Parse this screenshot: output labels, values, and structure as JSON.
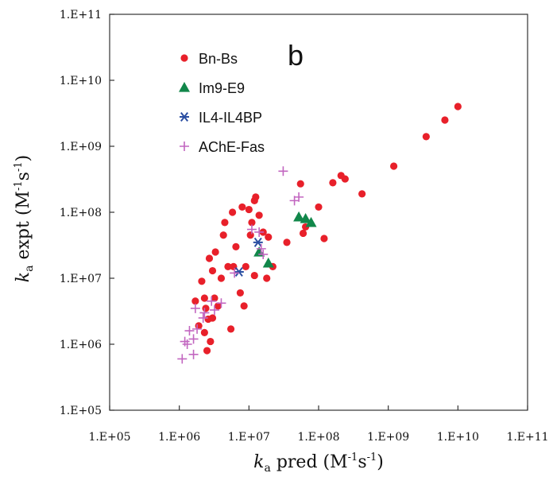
{
  "chart_data": {
    "type": "scatter",
    "panel_label": "b",
    "x_scale": "log",
    "y_scale": "log",
    "xlim": [
      100000,
      100000000000
    ],
    "ylim": [
      100000,
      100000000000
    ],
    "x_tick_values": [
      100000,
      1000000,
      10000000,
      100000000,
      1000000000,
      10000000000,
      100000000000
    ],
    "y_tick_values": [
      100000,
      1000000,
      10000000,
      100000000,
      1000000000,
      10000000000,
      100000000000
    ],
    "x_tick_labels": [
      "1.E+05",
      "1.E+06",
      "1.E+07",
      "1.E+08",
      "1.E+09",
      "1.E+10",
      "1.E+11"
    ],
    "y_tick_labels": [
      "1.E+05",
      "1.E+06",
      "1.E+07",
      "1.E+08",
      "1.E+09",
      "1.E+10",
      "1.E+11"
    ],
    "xlabel": {
      "k": "k",
      "sub": "a",
      "text": " pred (M",
      "sup1": "-1",
      "mid": "s",
      "sup2": "-1",
      "end": ")"
    },
    "ylabel": {
      "k": "k",
      "sub": "a",
      "text": " expt (M",
      "sup1": "-1",
      "mid": "s",
      "sup2": "-1",
      "end": ")"
    },
    "grid": false,
    "legend_position": "top-left",
    "series": [
      {
        "name": "Bn-Bs",
        "marker": "circle",
        "color": "#e8202a",
        "points": [
          [
            1700000,
            4500000
          ],
          [
            1900000,
            1900000
          ],
          [
            2100000,
            9000000
          ],
          [
            2300000,
            1500000
          ],
          [
            2300000,
            5000000
          ],
          [
            2400000,
            3500000
          ],
          [
            2500000,
            800000
          ],
          [
            2600000,
            2400000
          ],
          [
            2700000,
            20000000
          ],
          [
            2800000,
            1100000
          ],
          [
            3000000,
            13000000
          ],
          [
            3000000,
            2500000
          ],
          [
            3200000,
            5000000
          ],
          [
            3300000,
            25000000
          ],
          [
            3600000,
            3800000
          ],
          [
            4000000,
            10000000
          ],
          [
            4300000,
            45000000
          ],
          [
            4500000,
            70000000
          ],
          [
            5000000,
            15000000
          ],
          [
            5500000,
            1700000
          ],
          [
            5800000,
            100000000
          ],
          [
            6000000,
            15000000
          ],
          [
            6500000,
            30000000
          ],
          [
            7500000,
            6000000
          ],
          [
            8000000,
            120000000
          ],
          [
            8500000,
            3800000
          ],
          [
            9000000,
            15000000
          ],
          [
            10000000,
            110000000
          ],
          [
            10500000,
            45000000
          ],
          [
            11000000,
            70000000
          ],
          [
            12000000,
            150000000
          ],
          [
            12000000,
            11000000
          ],
          [
            12500000,
            170000000
          ],
          [
            14000000,
            90000000
          ],
          [
            16000000,
            50000000
          ],
          [
            18000000,
            10000000
          ],
          [
            19000000,
            42000000
          ],
          [
            22000000,
            15000000
          ],
          [
            35000000,
            35000000
          ],
          [
            55000000,
            270000000
          ],
          [
            60000000,
            48000000
          ],
          [
            65000000,
            60000000
          ],
          [
            100000000,
            120000000
          ],
          [
            120000000,
            40000000
          ],
          [
            160000000,
            280000000
          ],
          [
            210000000,
            360000000
          ],
          [
            240000000,
            320000000
          ],
          [
            420000000,
            190000000
          ],
          [
            1200000000,
            500000000
          ],
          [
            3500000000,
            1400000000
          ],
          [
            6500000000,
            2500000000
          ],
          [
            10000000000,
            4000000000
          ]
        ]
      },
      {
        "name": "Im9-E9",
        "marker": "triangle",
        "color": "#11874a",
        "points": [
          [
            14000000,
            25000000
          ],
          [
            19000000,
            17000000
          ],
          [
            52000000,
            85000000
          ],
          [
            65000000,
            80000000
          ],
          [
            78000000,
            70000000
          ]
        ]
      },
      {
        "name": "IL4-IL4BP",
        "marker": "star",
        "color": "#2b4fa2",
        "points": [
          [
            7200000,
            12500000
          ],
          [
            13500000,
            35000000
          ]
        ]
      },
      {
        "name": "AChE-Fas",
        "marker": "plus",
        "color": "#c266c0",
        "points": [
          [
            1100000,
            600000
          ],
          [
            1200000,
            1100000
          ],
          [
            1300000,
            1000000
          ],
          [
            1400000,
            1600000
          ],
          [
            1600000,
            700000
          ],
          [
            1600000,
            1200000
          ],
          [
            1700000,
            3500000
          ],
          [
            1800000,
            1700000
          ],
          [
            2200000,
            2500000
          ],
          [
            2300000,
            3000000
          ],
          [
            2900000,
            4500000
          ],
          [
            3200000,
            3300000
          ],
          [
            4000000,
            4200000
          ],
          [
            6200000,
            12000000
          ],
          [
            11000000,
            55000000
          ],
          [
            14000000,
            50000000
          ],
          [
            15000000,
            28000000
          ],
          [
            16000000,
            23000000
          ],
          [
            31000000,
            420000000
          ],
          [
            45000000,
            150000000
          ],
          [
            52000000,
            170000000
          ]
        ]
      }
    ]
  }
}
